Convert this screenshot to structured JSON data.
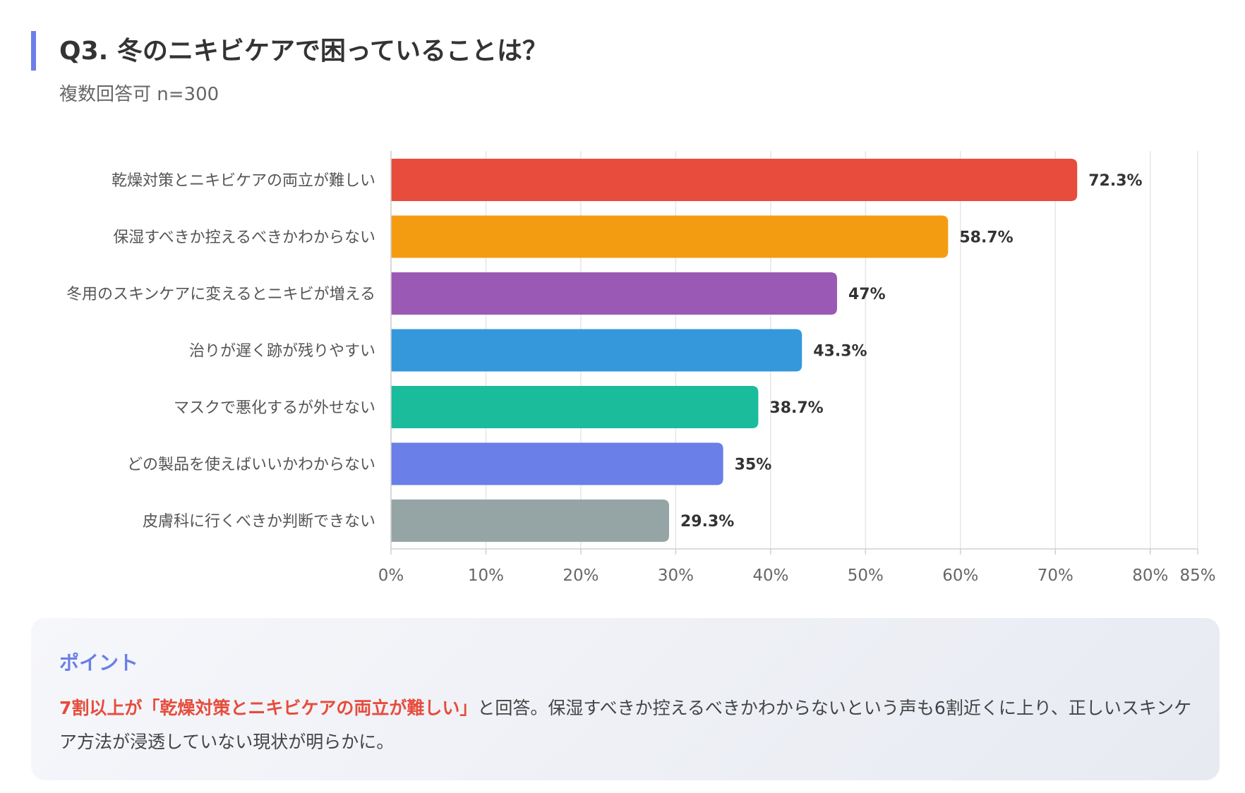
{
  "header": {
    "title": "Q3. 冬のニキビケアで困っていることは？",
    "subtitle": "複数回答可 n=300"
  },
  "chart_data": {
    "type": "bar",
    "orientation": "horizontal",
    "title": "Q3. 冬のニキビケアで困っていることは？",
    "subtitle": "複数回答可 n=300",
    "categories": [
      "乾燥対策とニキビケアの両立が難しい",
      "保湿すべきか控えるべきかわからない",
      "冬用のスキンケアに変えるとニキビが増える",
      "治りが遅く跡が残りやすい",
      "マスクで悪化するが外せない",
      "どの製品を使えばいいかわからない",
      "皮膚科に行くべきか判断できない"
    ],
    "values": [
      72.3,
      58.7,
      47,
      43.3,
      38.7,
      35,
      29.3
    ],
    "value_labels": [
      "72.3%",
      "58.7%",
      "47%",
      "43.3%",
      "38.7%",
      "35%",
      "29.3%"
    ],
    "colors": [
      "#e74c3c",
      "#f39c12",
      "#9b59b6",
      "#3498db",
      "#1abc9c",
      "#6b7fe8",
      "#95a5a6"
    ],
    "xlim": [
      0,
      85
    ],
    "x_ticks": [
      0,
      10,
      20,
      30,
      40,
      50,
      60,
      70,
      80,
      85
    ],
    "x_tick_labels": [
      "0%",
      "10%",
      "20%",
      "30%",
      "40%",
      "50%",
      "60%",
      "70%",
      "80%",
      "85%"
    ],
    "grid": true,
    "legend": "none"
  },
  "point": {
    "heading": "ポイント",
    "highlight": "7割以上が「乾燥対策とニキビケアの両立が難しい」",
    "body": "と回答。保湿すべきか控えるべきかわからないという声も6割近くに上り、正しいスキンケア方法が浸透していない現状が明らかに。"
  }
}
